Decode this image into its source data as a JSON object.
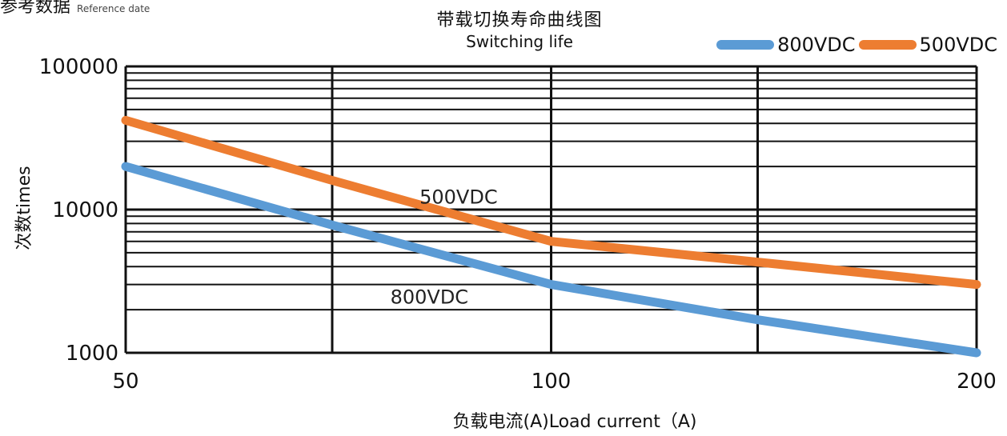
{
  "header": {
    "ref_label": "参考数据",
    "ref_label_en": "Reference date"
  },
  "colors": {
    "series_800": "#5b9bd5",
    "series_500": "#ed7d31",
    "grid": "#111111"
  },
  "chart_data": {
    "type": "line",
    "title": "带载切换寿命曲线图",
    "subtitle": "Switching life",
    "xlabel": "负载电流(A)Load current（A)",
    "ylabel": "次数times",
    "x_scale": "log",
    "y_scale": "log",
    "xlim": [
      50,
      200
    ],
    "ylim": [
      1000,
      100000
    ],
    "x_ticks": [
      50,
      100,
      200
    ],
    "x_tick_labels": [
      "50",
      "100",
      "200"
    ],
    "y_ticks": [
      1000,
      10000,
      100000
    ],
    "y_tick_labels": [
      "1000",
      "10000",
      "100000"
    ],
    "grid": true,
    "legend_position": "top-right",
    "series": [
      {
        "name": "800VDC",
        "inline_label": "800VDC",
        "color": "#5b9bd5",
        "x": [
          50,
          70,
          100,
          140,
          200
        ],
        "y": [
          20000,
          7800,
          3000,
          1700,
          1000
        ]
      },
      {
        "name": "500VDC",
        "inline_label": "500VDC",
        "color": "#ed7d31",
        "x": [
          50,
          70,
          100,
          140,
          200
        ],
        "y": [
          42000,
          16000,
          6000,
          4300,
          3000
        ]
      }
    ]
  }
}
